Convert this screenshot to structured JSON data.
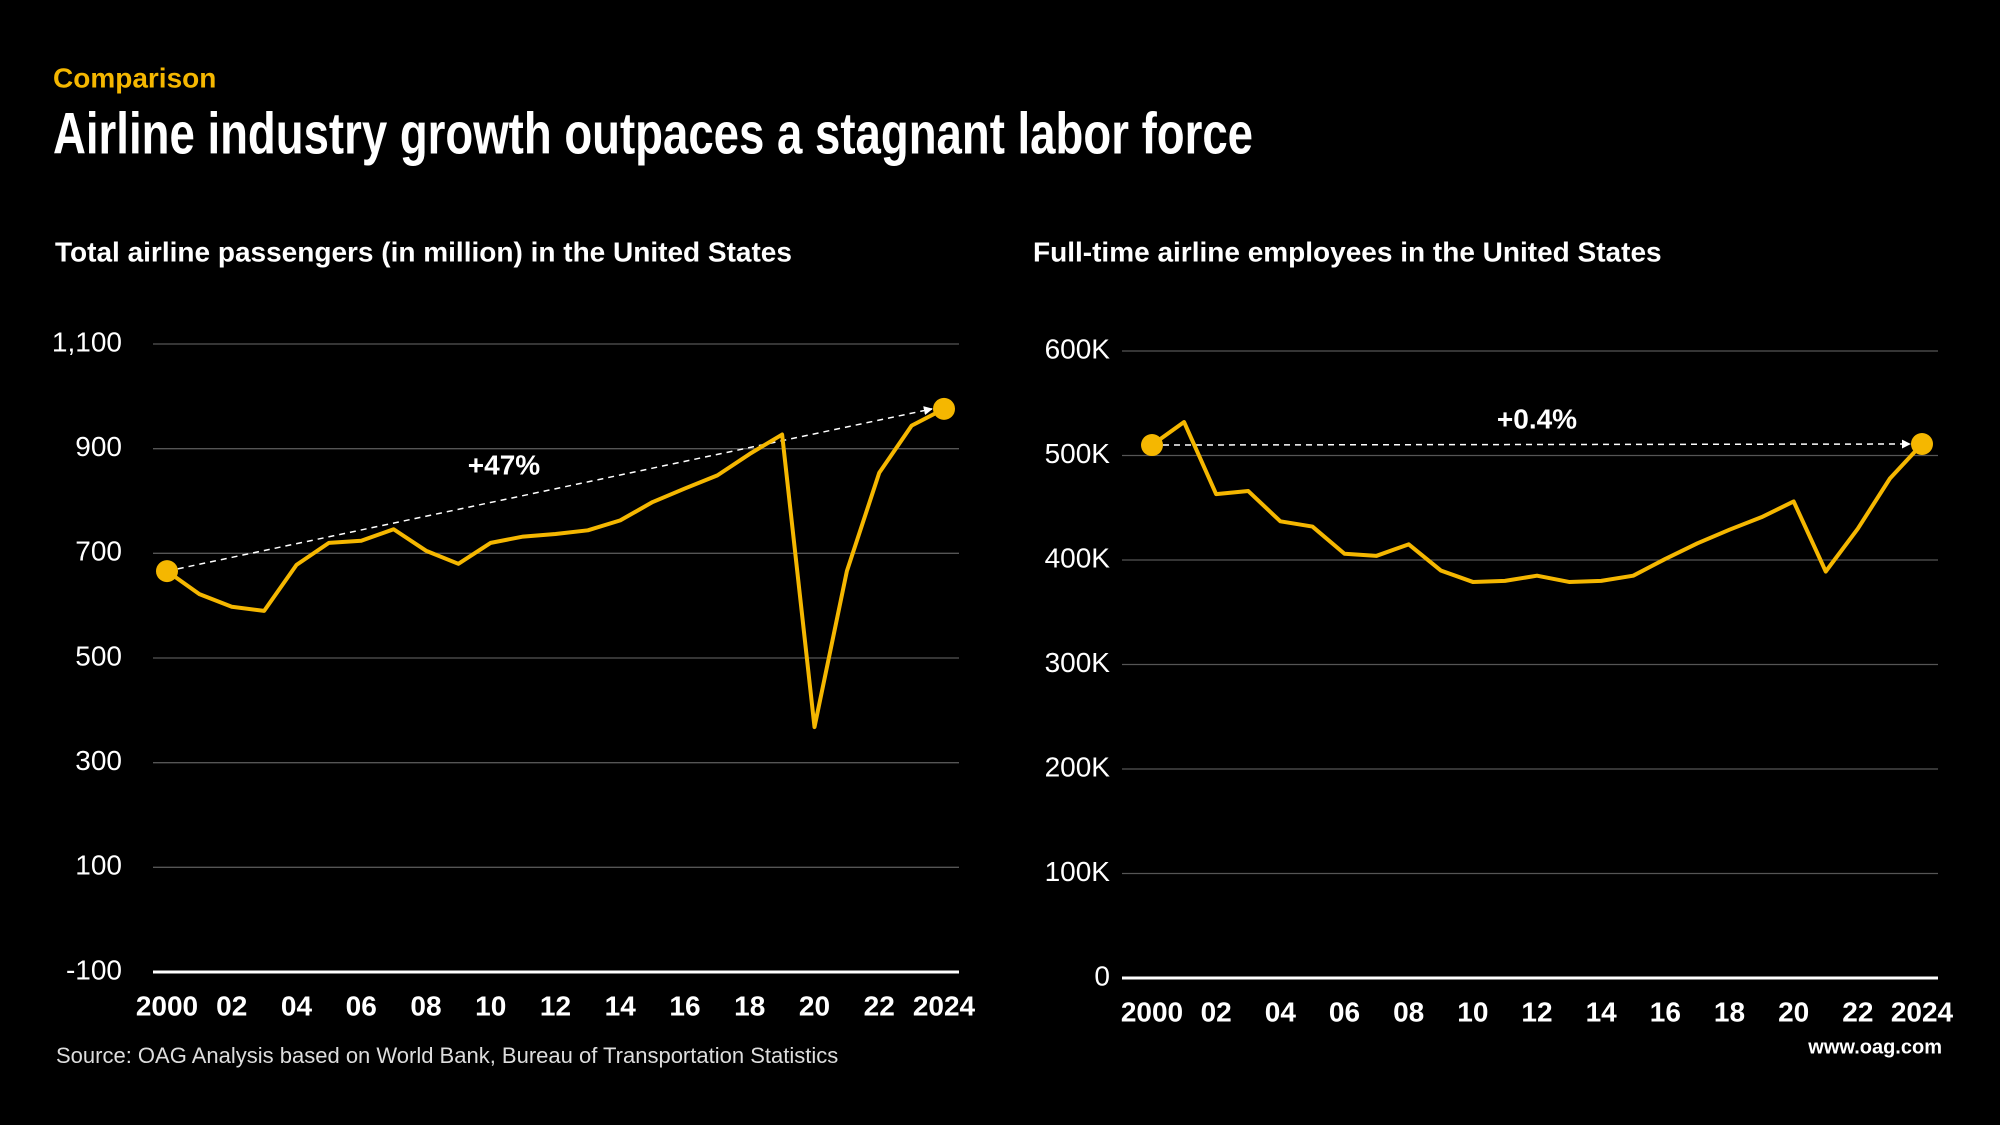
{
  "header": {
    "kicker": "Comparison",
    "title": "Airline industry growth outpaces a stagnant labor force"
  },
  "chart_data": [
    {
      "type": "line",
      "title": "Total airline passengers (in million) in the United States",
      "annotation": "+47%",
      "color": "#f5b700",
      "x": [
        2000,
        2001,
        2002,
        2003,
        2004,
        2005,
        2006,
        2007,
        2008,
        2009,
        2010,
        2011,
        2012,
        2013,
        2014,
        2015,
        2016,
        2017,
        2018,
        2019,
        2020,
        2021,
        2022,
        2023,
        2024
      ],
      "values": [
        666,
        622,
        598,
        590,
        678,
        720,
        724,
        746,
        705,
        680,
        720,
        732,
        737,
        744,
        763,
        798,
        824,
        849,
        890,
        927,
        368,
        666,
        854,
        944,
        976
      ],
      "xlim": [
        2000,
        2024
      ],
      "xticks": [
        2000,
        {
          "value": 2002,
          "label": "02"
        },
        {
          "value": 2004,
          "label": "04"
        },
        {
          "value": 2006,
          "label": "06"
        },
        {
          "value": 2008,
          "label": "08"
        },
        {
          "value": 2010,
          "label": "10"
        },
        {
          "value": 2012,
          "label": "12"
        },
        {
          "value": 2014,
          "label": "14"
        },
        {
          "value": 2016,
          "label": "16"
        },
        {
          "value": 2018,
          "label": "18"
        },
        {
          "value": 2020,
          "label": "20"
        },
        {
          "value": 2022,
          "label": "22"
        },
        2024
      ],
      "ylim": [
        -100,
        1100
      ],
      "yticks": [
        -100,
        100,
        300,
        500,
        700,
        900,
        {
          "value": 1100,
          "label": "1,100"
        }
      ],
      "grid": true
    },
    {
      "type": "line",
      "title": "Full-time airline employees in the United States",
      "annotation": "+0.4%",
      "color": "#f5b700",
      "x": [
        2000,
        2001,
        2002,
        2003,
        2004,
        2005,
        2006,
        2007,
        2008,
        2009,
        2010,
        2011,
        2012,
        2013,
        2014,
        2015,
        2016,
        2017,
        2018,
        2019,
        2020,
        2021,
        2022,
        2023,
        2024
      ],
      "values": [
        510000,
        532000,
        463000,
        466000,
        437000,
        432000,
        406000,
        404000,
        415000,
        390000,
        379000,
        380000,
        385000,
        379000,
        380000,
        385000,
        401000,
        416000,
        429000,
        441000,
        456000,
        389000,
        430000,
        478000,
        511000
      ],
      "xlim": [
        2000,
        2024
      ],
      "xticks": [
        2000,
        {
          "value": 2002,
          "label": "02"
        },
        {
          "value": 2004,
          "label": "04"
        },
        {
          "value": 2006,
          "label": "06"
        },
        {
          "value": 2008,
          "label": "08"
        },
        {
          "value": 2010,
          "label": "10"
        },
        {
          "value": 2012,
          "label": "12"
        },
        {
          "value": 2014,
          "label": "14"
        },
        {
          "value": 2016,
          "label": "16"
        },
        {
          "value": 2018,
          "label": "18"
        },
        {
          "value": 2020,
          "label": "20"
        },
        {
          "value": 2022,
          "label": "22"
        },
        2024
      ],
      "ylim": [
        0,
        600000
      ],
      "yticks": [
        0,
        {
          "value": 100000,
          "label": "100K"
        },
        {
          "value": 200000,
          "label": "200K"
        },
        {
          "value": 300000,
          "label": "300K"
        },
        {
          "value": 400000,
          "label": "400K"
        },
        {
          "value": 500000,
          "label": "500K"
        },
        {
          "value": 600000,
          "label": "600K"
        }
      ],
      "grid": true
    }
  ],
  "footer": {
    "source": "Source: OAG Analysis based on World Bank, Bureau of Transportation Statistics",
    "site": "www.oag.com"
  }
}
